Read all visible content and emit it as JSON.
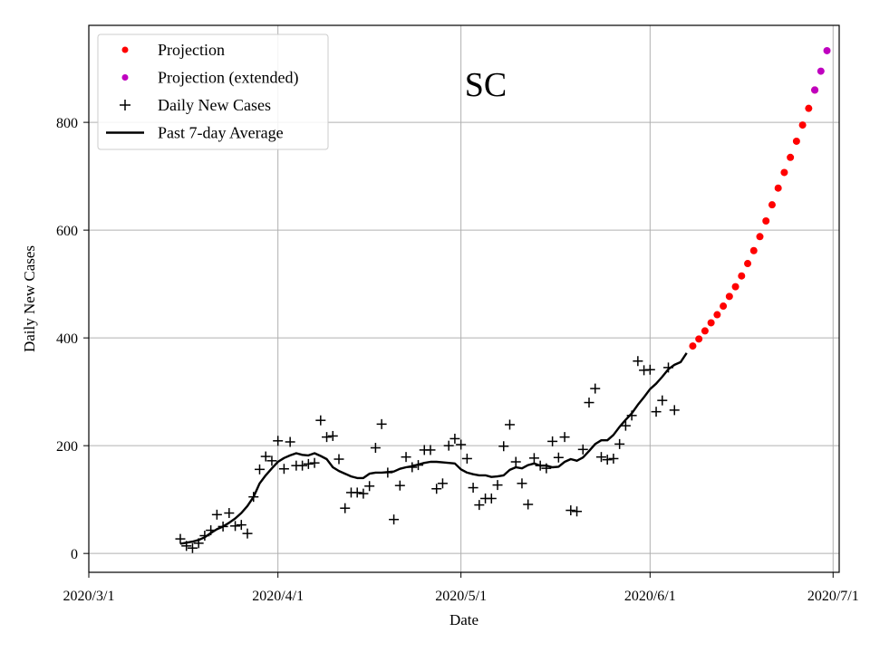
{
  "chart_data": {
    "type": "scatter",
    "title": "SC",
    "xlabel": "Date",
    "ylabel": "Daily New Cases",
    "xlim": [
      0,
      123
    ],
    "ylim": [
      -35,
      980
    ],
    "grid": true,
    "legend_position": "top-left",
    "x_ticks": [
      {
        "day": 0,
        "label": "2020/3/1"
      },
      {
        "day": 31,
        "label": "2020/4/1"
      },
      {
        "day": 61,
        "label": "2020/5/1"
      },
      {
        "day": 92,
        "label": "2020/6/1"
      },
      {
        "day": 122,
        "label": "2020/7/1"
      }
    ],
    "y_ticks": [
      0,
      200,
      400,
      600,
      800
    ],
    "legend": [
      {
        "label": "Projection",
        "marker": "dot",
        "color": "#ff0000"
      },
      {
        "label": "Projection (extended)",
        "marker": "dot",
        "color": "#bf00bf"
      },
      {
        "label": "Daily New Cases",
        "marker": "plus",
        "color": "#000000"
      },
      {
        "label": "Past 7-day Average",
        "marker": "line",
        "color": "#000000"
      }
    ],
    "series": [
      {
        "name": "Daily New Cases",
        "color": "#000000",
        "x": [
          15,
          16,
          17,
          18,
          19,
          20,
          21,
          22,
          23,
          24,
          25,
          26,
          27,
          28,
          29,
          30,
          31,
          32,
          33,
          34,
          35,
          36,
          37,
          38,
          39,
          40,
          41,
          42,
          43,
          44,
          45,
          46,
          47,
          48,
          49,
          50,
          51,
          52,
          53,
          54,
          55,
          56,
          57,
          58,
          59,
          60,
          61,
          62,
          63,
          64,
          65,
          66,
          67,
          68,
          69,
          70,
          71,
          72,
          73,
          74,
          75,
          76,
          77,
          78,
          79,
          80,
          81,
          82,
          83,
          84,
          85,
          86,
          87,
          88,
          89,
          90,
          91,
          92,
          93,
          94,
          95,
          96
        ],
        "y": [
          27,
          14,
          10,
          19,
          33,
          43,
          72,
          50,
          75,
          51,
          53,
          37,
          105,
          156,
          180,
          172,
          209,
          157,
          207,
          163,
          163,
          166,
          168,
          247,
          216,
          218,
          175,
          84,
          113,
          113,
          111,
          125,
          196,
          240,
          150,
          63,
          126,
          179,
          160,
          164,
          192,
          192,
          120,
          130,
          200,
          213,
          202,
          176,
          122,
          90,
          102,
          102,
          127,
          199,
          239,
          170,
          130,
          91,
          177,
          163,
          158,
          208,
          178,
          216,
          80,
          78,
          193,
          280,
          306,
          179,
          174,
          176,
          203,
          237,
          256,
          357,
          340,
          341,
          263,
          284,
          345,
          266
        ]
      },
      {
        "name": "Past 7-day Average",
        "color": "#000000",
        "x": [
          15,
          16,
          17,
          18,
          19,
          20,
          21,
          22,
          23,
          24,
          25,
          26,
          27,
          28,
          29,
          30,
          31,
          32,
          33,
          34,
          35,
          36,
          37,
          38,
          39,
          40,
          41,
          42,
          43,
          44,
          45,
          46,
          47,
          48,
          49,
          50,
          51,
          52,
          53,
          54,
          55,
          56,
          57,
          58,
          59,
          60,
          61,
          62,
          63,
          64,
          65,
          66,
          67,
          68,
          69,
          70,
          71,
          72,
          73,
          74,
          75,
          76,
          77,
          78,
          79,
          80,
          81,
          82,
          83,
          84,
          85,
          86,
          87,
          88,
          89,
          90,
          91,
          92,
          93,
          94,
          95,
          96,
          97,
          98
        ],
        "y": [
          18,
          20,
          22,
          25,
          30,
          38,
          45,
          50,
          57,
          65,
          75,
          88,
          105,
          130,
          145,
          158,
          170,
          177,
          182,
          186,
          183,
          182,
          186,
          181,
          175,
          160,
          153,
          148,
          143,
          140,
          140,
          148,
          150,
          150,
          151,
          152,
          157,
          160,
          162,
          165,
          168,
          170,
          170,
          169,
          168,
          167,
          156,
          150,
          147,
          145,
          145,
          142,
          143,
          145,
          155,
          160,
          158,
          164,
          167,
          163,
          163,
          160,
          161,
          170,
          175,
          172,
          178,
          190,
          203,
          210,
          210,
          220,
          235,
          248,
          260,
          276,
          290,
          305,
          315,
          328,
          342,
          350,
          355,
          372
        ]
      },
      {
        "name": "Projection",
        "color": "#ff0000",
        "x": [
          99,
          100,
          101,
          102,
          103,
          104,
          105,
          106,
          107,
          108,
          109,
          110,
          111,
          112,
          113,
          114,
          115,
          116,
          117,
          118,
          119
        ],
        "y": [
          385,
          398,
          413,
          428,
          443,
          459,
          477,
          495,
          515,
          538,
          562,
          588,
          617,
          647,
          678,
          707,
          735,
          765,
          795,
          826,
          860
        ]
      },
      {
        "name": "Projection (extended)",
        "color": "#bf00bf",
        "x": [
          119,
          120,
          121
        ],
        "y": [
          860,
          895,
          933
        ]
      }
    ]
  }
}
